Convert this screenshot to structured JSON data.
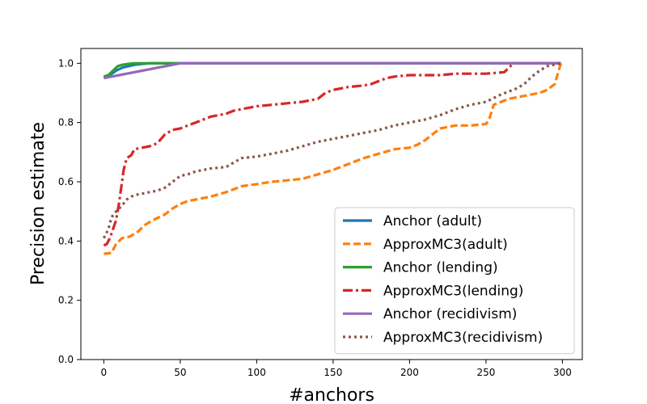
{
  "chart_data": {
    "type": "line",
    "xlabel": "#anchors",
    "ylabel": "Precision estimate",
    "xlim": [
      -15,
      313
    ],
    "ylim": [
      0.0,
      1.05
    ],
    "xticks": [
      0,
      50,
      100,
      150,
      200,
      250,
      300
    ],
    "yticks": [
      0.0,
      0.2,
      0.4,
      0.6,
      0.8,
      1.0
    ],
    "xtick_labels": [
      "0",
      "50",
      "100",
      "150",
      "200",
      "250",
      "300"
    ],
    "ytick_labels": [
      "0.0",
      "0.2",
      "0.4",
      "0.6",
      "0.8",
      "1.0"
    ],
    "grid": false,
    "legend_position": "lower-right",
    "series": [
      {
        "name": "Anchor (adult)",
        "color": "#1f77b4",
        "style": "solid",
        "x": [
          0,
          4,
          8,
          12,
          16,
          20,
          25,
          30,
          40,
          50,
          100,
          150,
          200,
          250,
          299
        ],
        "y": [
          0.951,
          0.96,
          0.975,
          0.985,
          0.99,
          0.995,
          0.998,
          1.0,
          1.0,
          1.0,
          1.0,
          1.0,
          1.0,
          1.0,
          1.0
        ]
      },
      {
        "name": "ApproxMC3(adult)",
        "color": "#ff7f0e",
        "style": "dashed",
        "x": [
          0,
          5,
          8,
          12,
          17,
          22,
          27,
          32,
          36,
          40,
          45,
          50,
          55,
          60,
          70,
          80,
          85,
          90,
          100,
          110,
          120,
          130,
          140,
          150,
          160,
          170,
          180,
          190,
          200,
          205,
          210,
          215,
          220,
          230,
          240,
          250,
          252,
          255,
          260,
          265,
          270,
          275,
          280,
          285,
          290,
          295,
          299
        ],
        "y": [
          0.357,
          0.36,
          0.39,
          0.41,
          0.415,
          0.43,
          0.455,
          0.47,
          0.48,
          0.49,
          0.51,
          0.525,
          0.535,
          0.54,
          0.55,
          0.565,
          0.575,
          0.585,
          0.592,
          0.6,
          0.605,
          0.61,
          0.625,
          0.64,
          0.66,
          0.68,
          0.695,
          0.71,
          0.715,
          0.725,
          0.74,
          0.76,
          0.78,
          0.79,
          0.79,
          0.795,
          0.81,
          0.86,
          0.87,
          0.88,
          0.885,
          0.89,
          0.895,
          0.9,
          0.91,
          0.93,
          1.0
        ]
      },
      {
        "name": "Anchor (lending)",
        "color": "#2ca02c",
        "style": "solid",
        "x": [
          0,
          3,
          6,
          9,
          12,
          16,
          20,
          30,
          50,
          100,
          150,
          200,
          250,
          299
        ],
        "y": [
          0.955,
          0.96,
          0.975,
          0.99,
          0.995,
          0.998,
          1.0,
          1.0,
          1.0,
          1.0,
          1.0,
          1.0,
          1.0,
          1.0
        ]
      },
      {
        "name": "ApproxMC3(lending)",
        "color": "#d62728",
        "style": "dashdot",
        "x": [
          0,
          2,
          4,
          6,
          8,
          10,
          13,
          15,
          18,
          20,
          25,
          30,
          35,
          40,
          45,
          50,
          55,
          60,
          65,
          70,
          75,
          80,
          85,
          90,
          95,
          100,
          110,
          120,
          130,
          140,
          145,
          150,
          155,
          160,
          170,
          175,
          180,
          185,
          190,
          200,
          210,
          220,
          230,
          240,
          250,
          262,
          268,
          280,
          299
        ],
        "y": [
          0.385,
          0.39,
          0.41,
          0.44,
          0.47,
          0.53,
          0.64,
          0.68,
          0.69,
          0.71,
          0.715,
          0.72,
          0.73,
          0.76,
          0.775,
          0.78,
          0.79,
          0.8,
          0.81,
          0.82,
          0.825,
          0.83,
          0.84,
          0.845,
          0.85,
          0.855,
          0.86,
          0.865,
          0.87,
          0.88,
          0.9,
          0.91,
          0.915,
          0.92,
          0.925,
          0.93,
          0.94,
          0.95,
          0.955,
          0.96,
          0.96,
          0.96,
          0.965,
          0.965,
          0.965,
          0.97,
          1.0,
          1.0,
          1.0
        ]
      },
      {
        "name": "Anchor (recidivism)",
        "color": "#9467bd",
        "style": "solid",
        "x": [
          0,
          5,
          10,
          15,
          20,
          25,
          30,
          35,
          40,
          45,
          50,
          100,
          150,
          200,
          250,
          299
        ],
        "y": [
          0.95,
          0.955,
          0.96,
          0.965,
          0.97,
          0.975,
          0.98,
          0.985,
          0.99,
          0.995,
          1.0,
          1.0,
          1.0,
          1.0,
          1.0,
          1.0
        ]
      },
      {
        "name": "ApproxMC3(recidivism)",
        "color": "#8c564b",
        "style": "dotted",
        "x": [
          0,
          3,
          5,
          8,
          10,
          12,
          15,
          18,
          20,
          25,
          30,
          35,
          40,
          45,
          50,
          55,
          60,
          70,
          80,
          85,
          90,
          100,
          110,
          120,
          130,
          140,
          150,
          160,
          170,
          180,
          190,
          200,
          210,
          220,
          230,
          240,
          250,
          260,
          265,
          270,
          275,
          280,
          285,
          290,
          299
        ],
        "y": [
          0.41,
          0.44,
          0.48,
          0.5,
          0.51,
          0.52,
          0.54,
          0.55,
          0.555,
          0.56,
          0.565,
          0.57,
          0.58,
          0.6,
          0.62,
          0.625,
          0.635,
          0.645,
          0.65,
          0.665,
          0.68,
          0.685,
          0.695,
          0.705,
          0.72,
          0.735,
          0.745,
          0.755,
          0.765,
          0.775,
          0.79,
          0.8,
          0.81,
          0.825,
          0.845,
          0.86,
          0.87,
          0.895,
          0.905,
          0.915,
          0.93,
          0.955,
          0.975,
          0.99,
          1.0
        ]
      }
    ]
  }
}
